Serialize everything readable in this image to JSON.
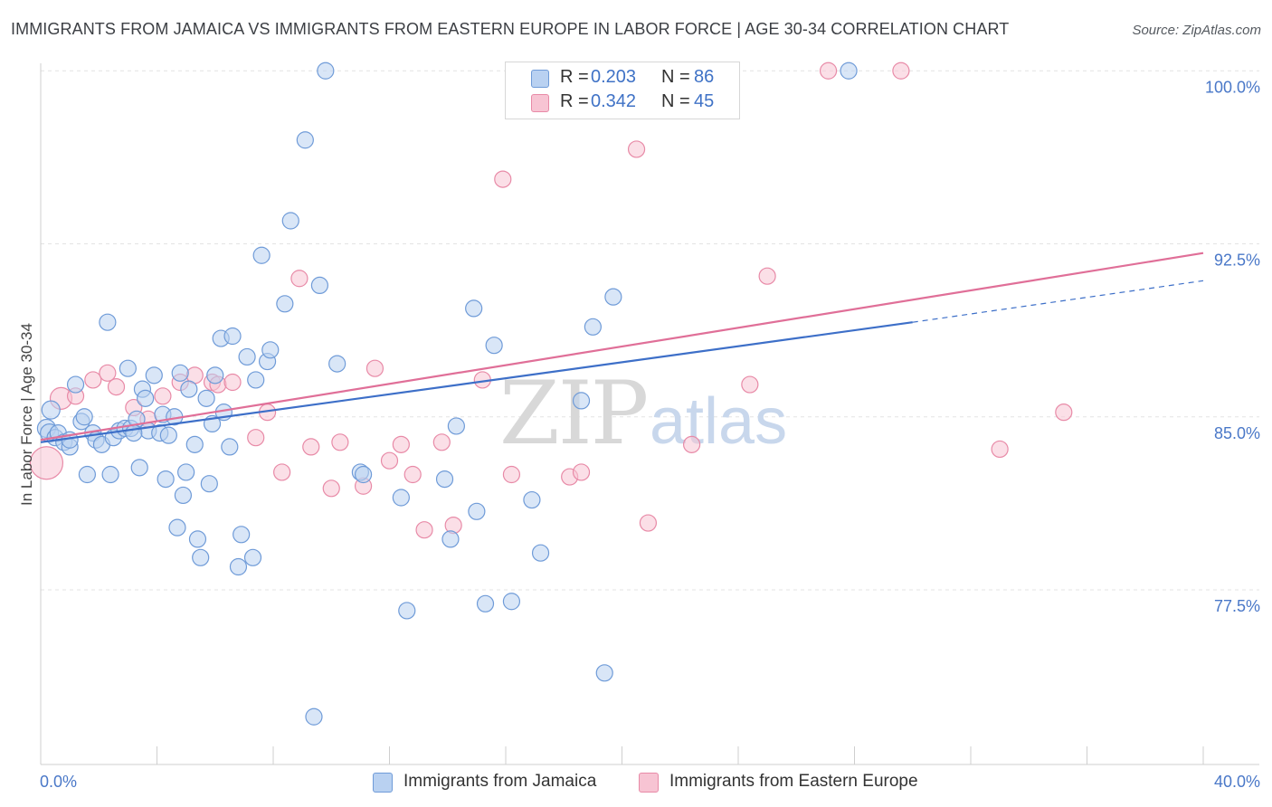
{
  "header": {
    "title": "IMMIGRANTS FROM JAMAICA VS IMMIGRANTS FROM EASTERN EUROPE IN LABOR FORCE | AGE 30-34 CORRELATION CHART",
    "source": "Source: ZipAtlas.com"
  },
  "watermark": {
    "zip": "ZIP",
    "atlas": "atlas"
  },
  "legend_top": {
    "rows": [
      {
        "r_label": "R = ",
        "r_value": "0.203",
        "n_label": "N = ",
        "n_value": "86"
      },
      {
        "r_label": "R = ",
        "r_value": "0.342",
        "n_label": "N = ",
        "n_value": "45"
      }
    ]
  },
  "colors": {
    "blue_fill": "#b9d1f1",
    "blue_stroke": "#6f9bd8",
    "blue_line": "#3d6fc8",
    "pink_fill": "#f7c4d3",
    "pink_stroke": "#e88aa7",
    "pink_line": "#e06f98",
    "tick_text": "#4a78c8",
    "grid": "#e3e3e3"
  },
  "chart_data": {
    "type": "scatter",
    "title": "IMMIGRANTS FROM JAMAICA VS IMMIGRANTS FROM EASTERN EUROPE IN LABOR FORCE | AGE 30-34 CORRELATION CHART",
    "xlabel": "",
    "ylabel": "In Labor Force | Age 30-34",
    "xlim": [
      0,
      40
    ],
    "ylim": [
      71.5,
      100.5
    ],
    "x_tick_labels": [
      "0.0%",
      "40.0%"
    ],
    "y_ticks": [
      77.5,
      85.0,
      92.5,
      100.0
    ],
    "y_tick_labels": [
      "77.5%",
      "85.0%",
      "92.5%",
      "100.0%"
    ],
    "grid": true,
    "legend_position": "bottom",
    "series": [
      {
        "name": "Immigrants from Jamaica",
        "color": "#6f9bd8",
        "R": 0.203,
        "N": 86,
        "trend": {
          "x": [
            0,
            30
          ],
          "y": [
            83.9,
            89.1
          ],
          "dashed_to": [
            40,
            90.9
          ]
        },
        "points": [
          [
            0.2,
            84.5
          ],
          [
            0.3,
            84.3
          ],
          [
            0.35,
            85.3
          ],
          [
            0.5,
            84.1
          ],
          [
            0.6,
            84.3
          ],
          [
            0.8,
            83.9
          ],
          [
            1.0,
            83.7
          ],
          [
            1.2,
            86.4
          ],
          [
            1.4,
            84.8
          ],
          [
            1.5,
            85.0
          ],
          [
            1.6,
            82.5
          ],
          [
            1.8,
            84.3
          ],
          [
            1.9,
            84.0
          ],
          [
            2.1,
            83.8
          ],
          [
            2.3,
            89.1
          ],
          [
            2.4,
            82.5
          ],
          [
            2.5,
            84.1
          ],
          [
            2.7,
            84.4
          ],
          [
            2.9,
            84.5
          ],
          [
            3.0,
            87.1
          ],
          [
            3.1,
            84.5
          ],
          [
            3.3,
            84.9
          ],
          [
            3.4,
            82.8
          ],
          [
            3.5,
            86.2
          ],
          [
            3.6,
            85.8
          ],
          [
            3.7,
            84.4
          ],
          [
            3.9,
            86.8
          ],
          [
            4.1,
            84.3
          ],
          [
            4.2,
            85.1
          ],
          [
            4.3,
            82.3
          ],
          [
            4.4,
            84.2
          ],
          [
            4.6,
            85.0
          ],
          [
            4.7,
            80.2
          ],
          [
            4.8,
            86.9
          ],
          [
            4.9,
            81.6
          ],
          [
            5.0,
            82.6
          ],
          [
            5.1,
            86.2
          ],
          [
            5.3,
            83.8
          ],
          [
            5.4,
            79.7
          ],
          [
            5.5,
            78.9
          ],
          [
            5.7,
            85.8
          ],
          [
            5.8,
            82.1
          ],
          [
            5.9,
            84.7
          ],
          [
            6.0,
            86.8
          ],
          [
            6.2,
            88.4
          ],
          [
            6.3,
            85.2
          ],
          [
            6.5,
            83.7
          ],
          [
            6.6,
            88.5
          ],
          [
            6.8,
            78.5
          ],
          [
            6.9,
            79.9
          ],
          [
            7.1,
            87.6
          ],
          [
            7.3,
            78.9
          ],
          [
            7.4,
            86.6
          ],
          [
            7.6,
            92.0
          ],
          [
            7.8,
            87.4
          ],
          [
            7.9,
            87.9
          ],
          [
            8.4,
            89.9
          ],
          [
            8.6,
            93.5
          ],
          [
            9.1,
            97.0
          ],
          [
            9.4,
            72.0
          ],
          [
            9.6,
            90.7
          ],
          [
            9.8,
            100.0
          ],
          [
            10.2,
            87.3
          ],
          [
            11.0,
            82.6
          ],
          [
            11.1,
            82.5
          ],
          [
            12.4,
            81.5
          ],
          [
            12.6,
            76.6
          ],
          [
            13.9,
            82.3
          ],
          [
            14.1,
            79.7
          ],
          [
            14.3,
            84.6
          ],
          [
            14.9,
            89.7
          ],
          [
            15.0,
            80.9
          ],
          [
            15.3,
            76.9
          ],
          [
            15.6,
            88.1
          ],
          [
            16.2,
            77.0
          ],
          [
            16.9,
            81.4
          ],
          [
            17.2,
            79.1
          ],
          [
            17.9,
            100.0
          ],
          [
            18.6,
            85.7
          ],
          [
            19.0,
            88.9
          ],
          [
            19.4,
            73.9
          ],
          [
            19.7,
            90.2
          ],
          [
            21.1,
            100.0
          ],
          [
            27.8,
            100.0
          ],
          [
            1.0,
            84.0
          ],
          [
            3.2,
            84.3
          ]
        ]
      },
      {
        "name": "Immigrants from Eastern Europe",
        "color": "#e88aa7",
        "R": 0.342,
        "N": 45,
        "trend": {
          "x": [
            0,
            40
          ],
          "y": [
            84.0,
            92.1
          ]
        },
        "points": [
          [
            0.2,
            83.0
          ],
          [
            0.7,
            85.8
          ],
          [
            1.2,
            85.9
          ],
          [
            1.8,
            86.6
          ],
          [
            2.3,
            86.9
          ],
          [
            2.6,
            86.3
          ],
          [
            3.2,
            85.4
          ],
          [
            3.7,
            84.9
          ],
          [
            4.2,
            85.9
          ],
          [
            4.8,
            86.5
          ],
          [
            5.3,
            86.8
          ],
          [
            5.9,
            86.5
          ],
          [
            6.1,
            86.4
          ],
          [
            6.6,
            86.5
          ],
          [
            7.4,
            84.1
          ],
          [
            7.8,
            85.2
          ],
          [
            8.3,
            82.6
          ],
          [
            8.9,
            91.0
          ],
          [
            9.3,
            83.7
          ],
          [
            10.0,
            81.9
          ],
          [
            10.3,
            83.9
          ],
          [
            11.1,
            82.0
          ],
          [
            11.5,
            87.1
          ],
          [
            12.0,
            83.1
          ],
          [
            12.4,
            83.8
          ],
          [
            12.8,
            82.5
          ],
          [
            13.2,
            80.1
          ],
          [
            13.8,
            83.9
          ],
          [
            14.2,
            80.3
          ],
          [
            15.2,
            86.6
          ],
          [
            15.9,
            95.3
          ],
          [
            16.2,
            82.5
          ],
          [
            18.2,
            82.4
          ],
          [
            18.6,
            82.6
          ],
          [
            18.8,
            100.0
          ],
          [
            20.5,
            96.6
          ],
          [
            20.9,
            80.4
          ],
          [
            21.2,
            100.0
          ],
          [
            22.4,
            83.8
          ],
          [
            24.4,
            86.4
          ],
          [
            25.0,
            91.1
          ],
          [
            27.1,
            100.0
          ],
          [
            29.6,
            100.0
          ],
          [
            33.0,
            83.6
          ],
          [
            35.2,
            85.2
          ]
        ]
      }
    ]
  },
  "bottom_legend": {
    "items": [
      {
        "label": "Immigrants from Jamaica"
      },
      {
        "label": "Immigrants from Eastern Europe"
      }
    ]
  }
}
